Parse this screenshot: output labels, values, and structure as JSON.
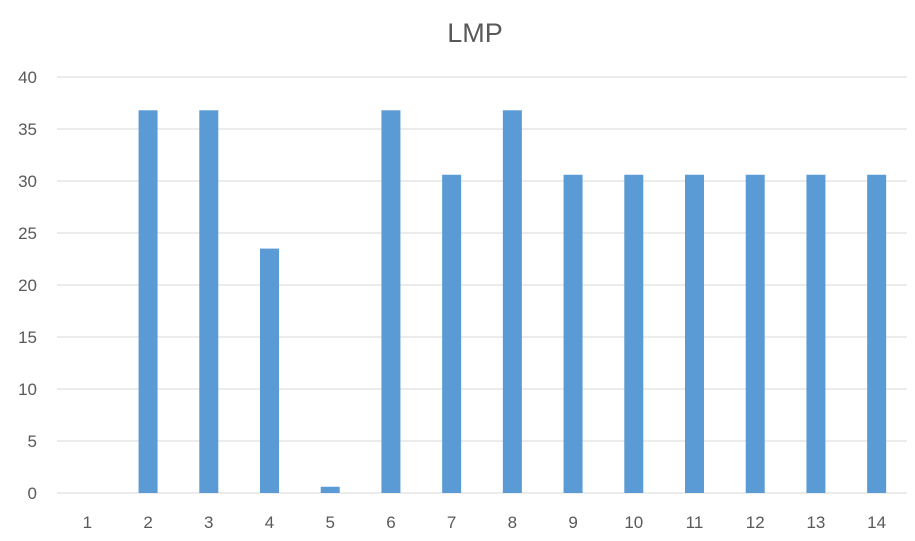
{
  "colors": {
    "bar": "#5b9bd5",
    "gridline": "#d9d9d9",
    "text": "#595959",
    "background": "#ffffff"
  },
  "chart_data": {
    "type": "bar",
    "title": "LMP",
    "xlabel": "",
    "ylabel": "",
    "categories": [
      "1",
      "2",
      "3",
      "4",
      "5",
      "6",
      "7",
      "8",
      "9",
      "10",
      "11",
      "12",
      "13",
      "14"
    ],
    "values": [
      0,
      36.8,
      36.8,
      23.5,
      0.6,
      36.8,
      30.6,
      36.8,
      30.6,
      30.6,
      30.6,
      30.6,
      30.6,
      30.6
    ],
    "ylim": [
      0,
      40
    ],
    "yticks": [
      0,
      5,
      10,
      15,
      20,
      25,
      30,
      35,
      40
    ],
    "grid": true,
    "legend": "none"
  }
}
